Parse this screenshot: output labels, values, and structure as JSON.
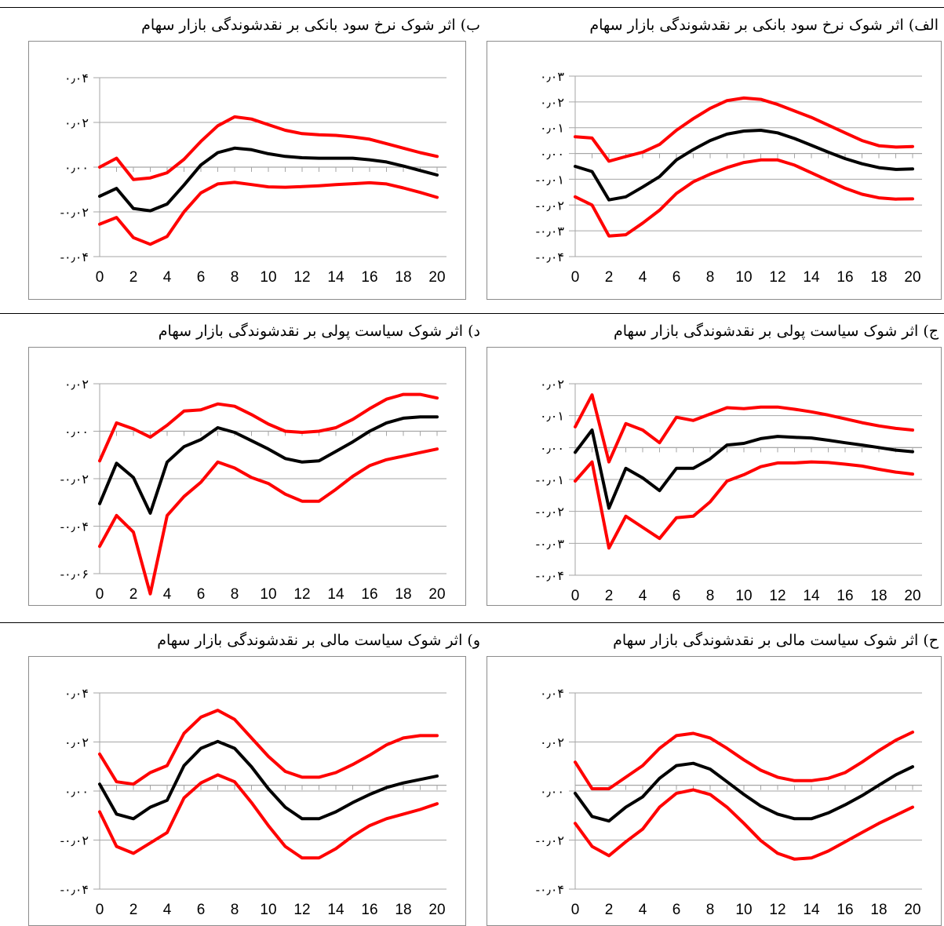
{
  "colors": {
    "mean": "#000000",
    "band": "#ff0000",
    "grid": "#a6a6a6",
    "frame": "#8c8c8c"
  },
  "chart_data": [
    {
      "type": "line",
      "title": "الف) اثر شوک نرخ سود بانکی بر نقدشوندگی بازار سهام",
      "x": [
        0,
        1,
        2,
        3,
        4,
        5,
        6,
        7,
        8,
        9,
        10,
        11,
        12,
        13,
        14,
        15,
        16,
        17,
        18,
        19,
        20
      ],
      "x_tick_labels": [
        "0",
        "2",
        "4",
        "6",
        "8",
        "10",
        "12",
        "14",
        "16",
        "18",
        "20"
      ],
      "y_tick_labels": [
        "۰٫۰۳",
        "۰٫۰۲",
        "۰٫۰۱",
        "۰٫۰۰",
        "-۰٫۰۱",
        "-۰٫۰۲",
        "-۰٫۰۳",
        "-۰٫۰۴"
      ],
      "ylim": [
        -0.04,
        0.03
      ],
      "grid": true,
      "series": [
        {
          "role": "upper",
          "values": [
            0.0065,
            0.006,
            -0.003,
            -0.0012,
            0.0005,
            0.0035,
            0.009,
            0.0135,
            0.0175,
            0.0205,
            0.0215,
            0.021,
            0.019,
            0.0165,
            0.014,
            0.011,
            0.008,
            0.005,
            0.003,
            0.0025,
            0.0027
          ]
        },
        {
          "role": "irf",
          "values": [
            -0.005,
            -0.007,
            -0.018,
            -0.0168,
            -0.013,
            -0.009,
            -0.0025,
            0.0015,
            0.005,
            0.0075,
            0.0087,
            0.009,
            0.008,
            0.0058,
            0.0032,
            0.0005,
            -0.002,
            -0.004,
            -0.0055,
            -0.0062,
            -0.006
          ]
        },
        {
          "role": "lower",
          "values": [
            -0.0168,
            -0.02,
            -0.032,
            -0.0315,
            -0.027,
            -0.022,
            -0.0155,
            -0.011,
            -0.008,
            -0.0055,
            -0.0035,
            -0.0025,
            -0.0025,
            -0.0045,
            -0.0075,
            -0.0105,
            -0.0135,
            -0.0158,
            -0.0172,
            -0.0177,
            -0.0176
          ]
        }
      ]
    },
    {
      "type": "line",
      "title": "ب) اثر شوک نرخ سود بانکی بر نقدشوندگی بازار سهام",
      "x": [
        0,
        1,
        2,
        3,
        4,
        5,
        6,
        7,
        8,
        9,
        10,
        11,
        12,
        13,
        14,
        15,
        16,
        17,
        18,
        19,
        20
      ],
      "x_tick_labels": [
        "0",
        "2",
        "4",
        "6",
        "8",
        "10",
        "12",
        "14",
        "16",
        "18",
        "20"
      ],
      "y_tick_labels": [
        "۰٫۰۴",
        "۰٫۰۲",
        "۰٫۰۰",
        "-۰٫۰۲",
        "-۰٫۰۴"
      ],
      "ylim": [
        -0.04,
        0.04
      ],
      "grid": true,
      "series": [
        {
          "role": "upper",
          "values": [
            0.0,
            0.004,
            -0.0055,
            -0.0048,
            -0.0025,
            0.0035,
            0.0115,
            0.0185,
            0.0225,
            0.0215,
            0.019,
            0.0165,
            0.015,
            0.0145,
            0.0142,
            0.0135,
            0.0125,
            0.0105,
            0.0085,
            0.0065,
            0.0048
          ]
        },
        {
          "role": "irf",
          "values": [
            -0.013,
            -0.0095,
            -0.0185,
            -0.0195,
            -0.0165,
            -0.008,
            0.001,
            0.0065,
            0.0085,
            0.0078,
            0.006,
            0.0048,
            0.0042,
            0.004,
            0.004,
            0.004,
            0.0033,
            0.0023,
            0.0005,
            -0.0015,
            -0.0035
          ]
        },
        {
          "role": "lower",
          "values": [
            -0.0255,
            -0.0225,
            -0.0315,
            -0.0345,
            -0.031,
            -0.02,
            -0.0115,
            -0.0075,
            -0.0068,
            -0.0078,
            -0.0088,
            -0.009,
            -0.0087,
            -0.0083,
            -0.0078,
            -0.0074,
            -0.007,
            -0.0075,
            -0.0093,
            -0.0113,
            -0.0135
          ]
        }
      ]
    },
    {
      "type": "line",
      "title": "ج) اثر شوک سیاست پولی بر نقدشوندگی بازار سهام",
      "x": [
        0,
        1,
        2,
        3,
        4,
        5,
        6,
        7,
        8,
        9,
        10,
        11,
        12,
        13,
        14,
        15,
        16,
        17,
        18,
        19,
        20
      ],
      "x_tick_labels": [
        "0",
        "2",
        "4",
        "6",
        "8",
        "10",
        "12",
        "14",
        "16",
        "18",
        "20"
      ],
      "y_tick_labels": [
        "۰٫۰۲",
        "۰٫۰۱",
        "۰٫۰۰",
        "-۰٫۰۱",
        "-۰٫۰۲",
        "-۰٫۰۳",
        "-۰٫۰۴"
      ],
      "ylim": [
        -0.04,
        0.02
      ],
      "grid": true,
      "series": [
        {
          "role": "upper",
          "values": [
            0.0065,
            0.0165,
            -0.0045,
            0.0075,
            0.0055,
            0.0015,
            0.0095,
            0.0085,
            0.0105,
            0.0125,
            0.0122,
            0.0127,
            0.0127,
            0.012,
            0.0112,
            0.0102,
            0.009,
            0.0078,
            0.0068,
            0.006,
            0.0055
          ]
        },
        {
          "role": "irf",
          "values": [
            -0.0015,
            0.0055,
            -0.019,
            -0.0065,
            -0.0095,
            -0.0135,
            -0.0065,
            -0.0065,
            -0.0035,
            0.0008,
            0.0013,
            0.0028,
            0.0035,
            0.0032,
            0.003,
            0.0023,
            0.0015,
            0.0008,
            0.0,
            -0.0008,
            -0.0013
          ]
        },
        {
          "role": "lower",
          "values": [
            -0.0105,
            -0.0045,
            -0.0315,
            -0.0215,
            -0.025,
            -0.0285,
            -0.022,
            -0.0215,
            -0.017,
            -0.0105,
            -0.0085,
            -0.006,
            -0.0048,
            -0.0048,
            -0.0045,
            -0.0047,
            -0.0052,
            -0.0058,
            -0.0068,
            -0.0077,
            -0.0083
          ]
        }
      ]
    },
    {
      "type": "line",
      "title": "د) اثر شوک سیاست پولی بر نقدشوندگی بازار سهام",
      "x": [
        0,
        1,
        2,
        3,
        4,
        5,
        6,
        7,
        8,
        9,
        10,
        11,
        12,
        13,
        14,
        15,
        16,
        17,
        18,
        19,
        20
      ],
      "x_tick_labels": [
        "0",
        "2",
        "4",
        "6",
        "8",
        "10",
        "12",
        "14",
        "16",
        "18",
        "20"
      ],
      "y_tick_labels": [
        "۰٫۰۲",
        "۰٫۰۰",
        "-۰٫۰۲",
        "-۰٫۰۴",
        "-۰٫۰۶"
      ],
      "ylim": [
        -0.06,
        0.02
      ],
      "grid": true,
      "series": [
        {
          "role": "upper",
          "values": [
            -0.0125,
            0.0035,
            0.001,
            -0.0025,
            0.0025,
            0.0085,
            0.009,
            0.0115,
            0.0105,
            0.007,
            0.003,
            0.0,
            -0.0005,
            0.0,
            0.0015,
            0.005,
            0.0095,
            0.0135,
            0.0155,
            0.0155,
            0.014
          ]
        },
        {
          "role": "irf",
          "values": [
            -0.0305,
            -0.0135,
            -0.0195,
            -0.0345,
            -0.013,
            -0.0065,
            -0.0035,
            0.0015,
            -0.0005,
            -0.004,
            -0.0075,
            -0.0115,
            -0.013,
            -0.0125,
            -0.0085,
            -0.0045,
            0.0,
            0.0035,
            0.0055,
            0.006,
            0.006
          ]
        },
        {
          "role": "lower",
          "values": [
            -0.0485,
            -0.0355,
            -0.0425,
            -0.0685,
            -0.0355,
            -0.0275,
            -0.0215,
            -0.013,
            -0.0155,
            -0.0195,
            -0.022,
            -0.0265,
            -0.0295,
            -0.0295,
            -0.0245,
            -0.019,
            -0.0145,
            -0.012,
            -0.0105,
            -0.009,
            -0.0075
          ]
        }
      ]
    },
    {
      "type": "line",
      "title": "ح) اثر شوک سیاست مالی بر نقدشوندگی بازار سهام",
      "x": [
        0,
        1,
        2,
        3,
        4,
        5,
        6,
        7,
        8,
        9,
        10,
        11,
        12,
        13,
        14,
        15,
        16,
        17,
        18,
        19,
        20
      ],
      "x_tick_labels": [
        "0",
        "2",
        "4",
        "6",
        "8",
        "10",
        "12",
        "14",
        "16",
        "18",
        "20"
      ],
      "y_tick_labels": [
        "۰٫۰۴",
        "۰٫۰۲",
        "۰٫۰۰",
        "-۰٫۰۲",
        "-۰٫۰۴"
      ],
      "ylim": [
        -0.045,
        0.04
      ],
      "grid": true,
      "series": [
        {
          "role": "upper",
          "values": [
            0.01,
            -0.0015,
            -0.0015,
            0.0035,
            0.0085,
            0.016,
            0.0215,
            0.0225,
            0.0205,
            0.016,
            0.011,
            0.0065,
            0.0035,
            0.002,
            0.002,
            0.003,
            0.0055,
            0.01,
            0.015,
            0.0195,
            0.023
          ]
        },
        {
          "role": "irf",
          "values": [
            -0.0035,
            -0.0135,
            -0.0155,
            -0.0095,
            -0.005,
            0.003,
            0.0085,
            0.0095,
            0.007,
            0.0015,
            -0.004,
            -0.009,
            -0.0125,
            -0.0145,
            -0.0145,
            -0.012,
            -0.0085,
            -0.0045,
            0.0,
            0.0045,
            0.008
          ]
        },
        {
          "role": "lower",
          "values": [
            -0.0165,
            -0.0265,
            -0.0305,
            -0.0245,
            -0.019,
            -0.0095,
            -0.0035,
            -0.002,
            -0.004,
            -0.0095,
            -0.0165,
            -0.024,
            -0.0295,
            -0.032,
            -0.0315,
            -0.0285,
            -0.0245,
            -0.0205,
            -0.0165,
            -0.013,
            -0.0095
          ]
        }
      ]
    },
    {
      "type": "line",
      "title": "و) اثر شوک سیاست مالی بر نقدشوندگی بازار سهام",
      "x": [
        0,
        1,
        2,
        3,
        4,
        5,
        6,
        7,
        8,
        9,
        10,
        11,
        12,
        13,
        14,
        15,
        16,
        17,
        18,
        19,
        20
      ],
      "x_tick_labels": [
        "0",
        "2",
        "4",
        "6",
        "8",
        "10",
        "12",
        "14",
        "16",
        "18",
        "20"
      ],
      "y_tick_labels": [
        "۰٫۰۴",
        "۰٫۰۲",
        "۰٫۰۰",
        "-۰٫۰۲",
        "-۰٫۰۴"
      ],
      "ylim": [
        -0.045,
        0.04
      ],
      "grid": true,
      "series": [
        {
          "role": "upper",
          "values": [
            0.0135,
            0.0015,
            0.0005,
            0.0055,
            0.0085,
            0.0225,
            0.0295,
            0.0325,
            0.0285,
            0.0205,
            0.0125,
            0.006,
            0.0035,
            0.0035,
            0.0055,
            0.009,
            0.013,
            0.0175,
            0.0205,
            0.0215,
            0.0215
          ]
        },
        {
          "role": "irf",
          "values": [
            0.0005,
            -0.0125,
            -0.0145,
            -0.0095,
            -0.0065,
            0.0085,
            0.016,
            0.019,
            0.016,
            0.008,
            -0.0015,
            -0.0095,
            -0.0145,
            -0.0145,
            -0.0115,
            -0.0075,
            -0.004,
            -0.001,
            0.001,
            0.0025,
            0.004
          ]
        },
        {
          "role": "lower",
          "values": [
            -0.0115,
            -0.0265,
            -0.0295,
            -0.025,
            -0.0205,
            -0.0055,
            0.001,
            0.0045,
            0.0015,
            -0.0075,
            -0.0175,
            -0.0265,
            -0.0315,
            -0.0315,
            -0.0275,
            -0.022,
            -0.0175,
            -0.0145,
            -0.0125,
            -0.0105,
            -0.008
          ]
        }
      ]
    }
  ]
}
